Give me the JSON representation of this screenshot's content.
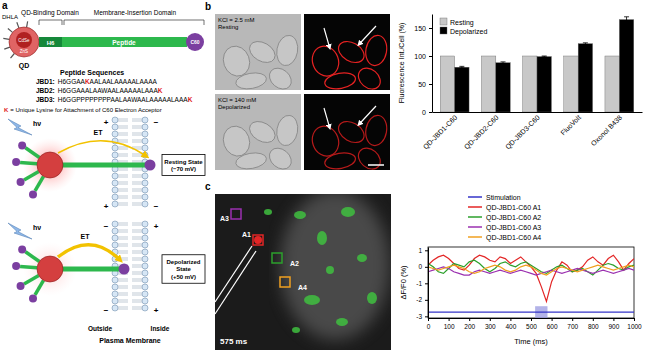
{
  "panel_letters": [
    "a",
    "b",
    "c"
  ],
  "construct": {
    "ligand": "DHLA",
    "core": "CdSe",
    "shell": "ZnS",
    "qd": "QD",
    "binding_domain": "QD-Binding Domain",
    "insertion_domain": "Membrane-Insertion Domain",
    "his_tag": "H6",
    "peptide": "Peptide",
    "acceptor": "C60"
  },
  "sequences_title": "Peptide Sequences",
  "sequences": [
    {
      "name": "JBD1:",
      "before": "H6GGAA",
      "lysine": "K",
      "after": "AALAALAAAAALAAAA"
    },
    {
      "name": "JBD2:",
      "before": "H6GGAAALAAWAALAAAAALAAA",
      "lysine": "K"
    },
    {
      "name": "JBD3:",
      "before": "H6GGPPPPPPPPAALAAWAALAAAAALAAA",
      "lysine": "K"
    }
  ],
  "note": {
    "key": "K",
    "text": "= Unique Lysine for Attachment of C60 Electron Acceptor"
  },
  "light": "hν",
  "transfer": "ET",
  "states": [
    {
      "label": "Resting State",
      "potential": "(−70 mV)"
    },
    {
      "label": "Depolarized State",
      "potential": "(+50 mV)"
    }
  ],
  "charges": {
    "positive": "+",
    "negative": "−"
  },
  "membrane": {
    "outside": "Outside",
    "inside": "Inside",
    "label": "Plasma Membrane"
  },
  "micrographs": [
    {
      "condition": "KCl = 2.5 mM",
      "state": "Resting"
    },
    {
      "condition": "KCl = 140 mM",
      "state": "Depolarized"
    }
  ],
  "imaging": {
    "time": "575 ms",
    "rois": [
      "A1",
      "A2",
      "A3",
      "A4"
    ]
  },
  "chart_data": [
    {
      "type": "bar",
      "y_label": "Fluorescence Int./Cell (%)",
      "categories": [
        "QD-JBD1-C60",
        "QD-JBD2-C60",
        "QD-JBD3-C60",
        "FluoVolt",
        "Oxonol B438"
      ],
      "series": [
        {
          "name": "Resting",
          "color": "#c8c8c8",
          "values": [
            100,
            100,
            100,
            100,
            100
          ]
        },
        {
          "name": "Depolarized",
          "color": "#000000",
          "values": [
            80,
            88,
            99,
            122,
            165
          ],
          "errors": [
            1.5,
            1.5,
            1,
            1.5,
            5
          ]
        }
      ],
      "ylim": [
        0,
        175
      ],
      "yticks": [
        0,
        50,
        100,
        150
      ],
      "legend": "top-left"
    },
    {
      "type": "line",
      "x_label": "Time (ms)",
      "y_label": "ΔF/F0 (%)",
      "x": [
        0,
        25,
        50,
        75,
        100,
        125,
        150,
        175,
        200,
        225,
        250,
        275,
        300,
        325,
        350,
        375,
        400,
        425,
        450,
        475,
        500,
        525,
        550,
        575,
        600,
        625,
        650,
        675,
        700,
        725,
        750,
        775,
        800,
        825,
        850,
        875,
        900,
        925,
        950,
        975,
        1000
      ],
      "series": [
        {
          "name": "Stimulation",
          "color": "#3535c8",
          "values": [
            -2.75,
            -2.75,
            -2.75,
            -2.75,
            -2.75,
            -2.75,
            -2.75,
            -2.75,
            -2.75,
            -2.75,
            -2.75,
            -2.75,
            -2.75,
            -2.75,
            -2.75,
            -2.75,
            -2.75,
            -2.75,
            -2.75,
            -2.75,
            -2.75,
            -2.75,
            -2.75,
            -2.75,
            -2.75,
            -2.75,
            -2.75,
            -2.75,
            -2.75,
            -2.75,
            -2.75,
            -2.75,
            -2.75,
            -2.75,
            -2.75,
            -2.75,
            -2.75,
            -2.75,
            -2.75,
            -2.75,
            -2.75
          ]
        },
        {
          "name": "QD-JBD1-C60 A1",
          "color": "#e32626",
          "values": [
            0.1,
            0.4,
            0.6,
            0.7,
            0.5,
            0.2,
            -0.1,
            -0.2,
            0.1,
            0.5,
            0.7,
            0.6,
            0.4,
            0.3,
            0.6,
            0.5,
            0.2,
            0.4,
            0.6,
            0.3,
            0.0,
            -0.4,
            -1.2,
            -2.1,
            -0.9,
            -0.2,
            0.3,
            0.1,
            -0.3,
            -0.2,
            0.0,
            0.4,
            0.6,
            0.3,
            0.1,
            0.5,
            0.7,
            0.3,
            -0.2,
            0.2,
            0.5
          ]
        },
        {
          "name": "QD-JBD1-C60 A2",
          "color": "#2ca02c",
          "values": [
            0.2,
            0.0,
            -0.3,
            -0.4,
            -0.1,
            0.2,
            0.1,
            0.0,
            0.3,
            0.4,
            0.2,
            -0.1,
            -0.3,
            -0.1,
            0.2,
            0.3,
            0.1,
            0.0,
            0.2,
            0.3,
            0.1,
            -0.1,
            -0.3,
            -0.4,
            -0.2,
            0.0,
            0.1,
            -0.1,
            -0.3,
            -0.2,
            -0.1,
            -0.3,
            -0.5,
            -0.2,
            0.1,
            0.2,
            0.1,
            -0.1,
            -0.2,
            0.0,
            0.1
          ]
        },
        {
          "name": "QD-JBD1-C60 A3",
          "color": "#9b30b0",
          "values": [
            -0.3,
            -0.2,
            -0.1,
            0.0,
            -0.1,
            -0.3,
            -0.4,
            -0.5,
            -0.5,
            -0.3,
            -0.2,
            -0.3,
            -0.4,
            -0.3,
            -0.2,
            -0.3,
            -0.4,
            -0.3,
            -0.2,
            -0.3,
            -0.4,
            -0.5,
            -0.4,
            -0.3,
            -0.2,
            -0.3,
            -0.4,
            -0.3,
            -0.2,
            -0.1,
            -0.2,
            -0.3,
            -0.4,
            -0.3,
            -0.2,
            -0.3,
            -0.4,
            -0.3,
            -0.2,
            -0.1,
            -0.2
          ]
        },
        {
          "name": "QD-JBD1-C60 A4",
          "color": "#f0a020",
          "values": [
            0.0,
            -0.1,
            -0.2,
            -0.1,
            0.0,
            0.1,
            0.0,
            -0.1,
            -0.3,
            -0.4,
            -0.3,
            -0.1,
            0.0,
            0.1,
            0.0,
            -0.2,
            -0.3,
            -0.2,
            0.0,
            0.1,
            0.0,
            -0.2,
            -0.4,
            -0.5,
            -0.3,
            -0.1,
            0.0,
            -0.1,
            -0.2,
            -0.3,
            -0.2,
            -0.1,
            0.0,
            0.1,
            0.0,
            -0.1,
            -0.2,
            -0.1,
            0.0,
            0.1,
            0.0
          ]
        }
      ],
      "stimulus_interval": [
        520,
        580
      ],
      "xlim": [
        0,
        1000
      ],
      "xticks": [
        0,
        100,
        200,
        300,
        400,
        500,
        600,
        700,
        800,
        900,
        1000
      ],
      "ylim": [
        -3.1,
        1.2
      ],
      "yticks": [
        -3,
        -2,
        -1,
        0,
        1
      ],
      "legend": "top"
    }
  ]
}
